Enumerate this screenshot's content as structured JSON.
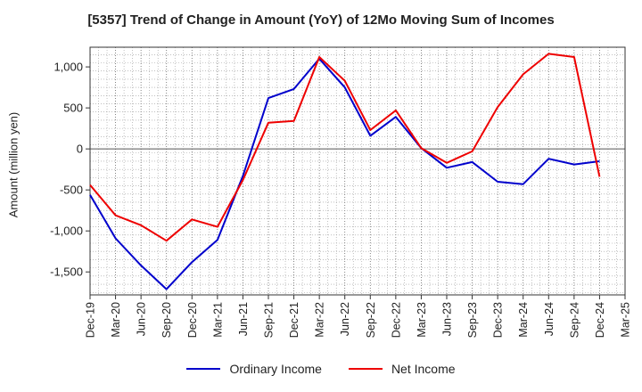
{
  "chart_data": {
    "type": "line",
    "title": "[5357]  Trend of Change in Amount (YoY) of 12Mo Moving Sum of Incomes",
    "ylabel": "Amount (million yen)",
    "xlabel": "",
    "ylim": [
      -1780,
      1240
    ],
    "yticks": [
      -1500,
      -1000,
      -500,
      0,
      500,
      1000
    ],
    "ytick_labels": [
      "-1,500",
      "-1,000",
      "-500",
      "0",
      "500",
      "1,000"
    ],
    "categories": [
      "Dec-19",
      "Mar-20",
      "Jun-20",
      "Sep-20",
      "Dec-20",
      "Mar-21",
      "Jun-21",
      "Sep-21",
      "Dec-21",
      "Mar-22",
      "Jun-22",
      "Sep-22",
      "Dec-22",
      "Mar-23",
      "Jun-23",
      "Sep-23",
      "Dec-23",
      "Mar-24",
      "Jun-24",
      "Sep-24",
      "Dec-24",
      "Mar-25"
    ],
    "grid": true,
    "legend_position": "bottom",
    "series": [
      {
        "name": "Ordinary Income",
        "color": "#0000cc",
        "values": [
          -560,
          -1090,
          -1420,
          -1710,
          -1380,
          -1110,
          -330,
          620,
          730,
          1100,
          750,
          160,
          390,
          10,
          -230,
          -160,
          -400,
          -430,
          -120,
          -190,
          -150,
          null
        ]
      },
      {
        "name": "Net Income",
        "color": "#ee0000",
        "values": [
          -440,
          -810,
          -930,
          -1120,
          -860,
          -950,
          -380,
          320,
          340,
          1120,
          830,
          230,
          470,
          10,
          -170,
          -30,
          510,
          910,
          1160,
          1120,
          -340,
          null
        ]
      }
    ]
  }
}
